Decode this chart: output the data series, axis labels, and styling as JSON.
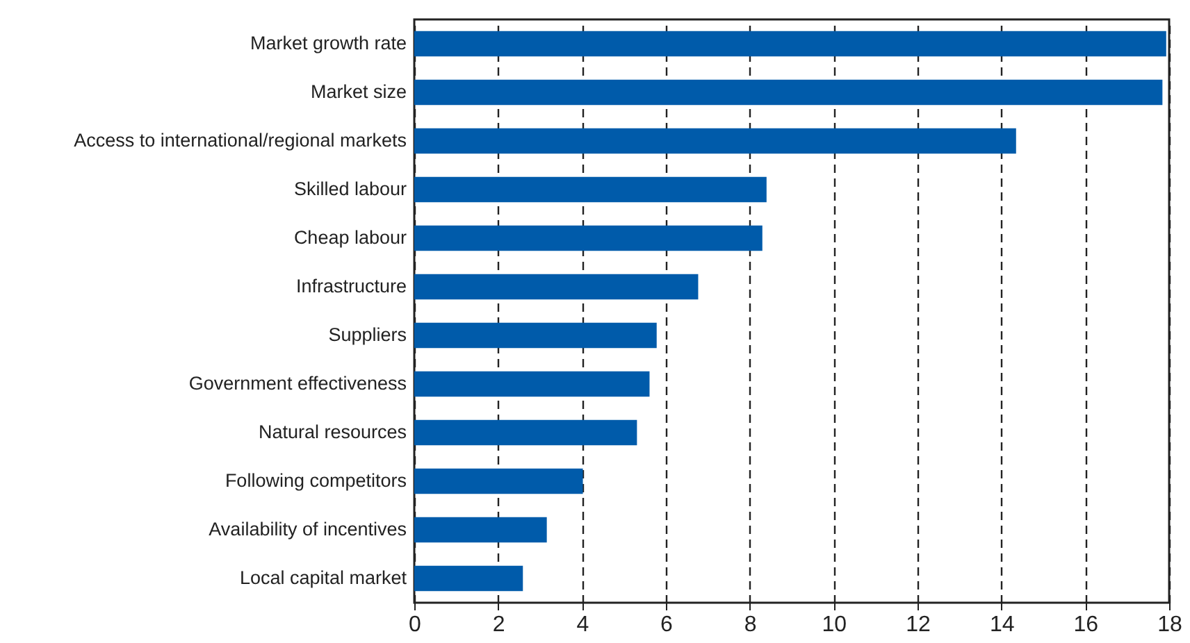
{
  "chart_data": {
    "type": "bar",
    "orientation": "horizontal",
    "categories": [
      "Market growth rate",
      "Market size",
      "Access to international/regional markets",
      "Skilled labour",
      "Cheap labour",
      "Infrastructure",
      "Suppliers",
      "Government effectiveness",
      "Natural resources",
      "Following competitors",
      "Availability of incentives",
      "Local capital market"
    ],
    "values": [
      17.93,
      17.84,
      14.35,
      8.4,
      8.3,
      6.77,
      5.78,
      5.61,
      5.31,
      4.02,
      3.16,
      2.59
    ],
    "color": "#005baa",
    "xlim": [
      0,
      18
    ],
    "xticks": [
      0,
      2,
      4,
      6,
      8,
      10,
      12,
      14,
      16,
      18
    ],
    "grid": "x"
  }
}
